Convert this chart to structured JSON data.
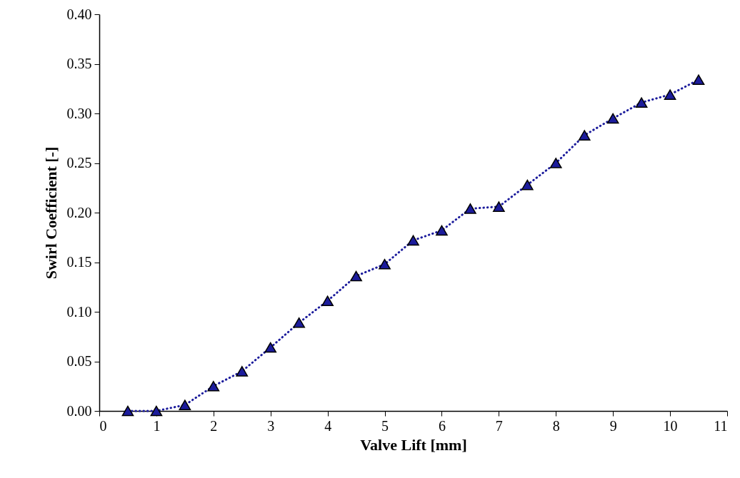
{
  "chart_data": {
    "type": "line",
    "xlabel": "Valve Lift [mm]",
    "ylabel": "Swirl Coefficient [-]",
    "x": [
      0.5,
      1,
      1.5,
      2,
      2.5,
      3,
      3.5,
      4,
      4.5,
      5,
      5.5,
      6,
      6.5,
      7,
      7.5,
      8,
      8.5,
      9,
      9.5,
      10,
      10.5
    ],
    "series": [
      {
        "color": "#1c1c9c",
        "values": [
          0.0,
          0.0,
          0.006,
          0.025,
          0.04,
          0.064,
          0.089,
          0.111,
          0.136,
          0.148,
          0.172,
          0.182,
          0.204,
          0.206,
          0.228,
          0.25,
          0.278,
          0.295,
          0.311,
          0.319,
          0.334
        ]
      }
    ],
    "xlim": [
      0,
      11
    ],
    "xticks": [
      0,
      1,
      2,
      3,
      4,
      5,
      6,
      7,
      8,
      9,
      10,
      11
    ],
    "ylim": [
      0,
      0.4
    ],
    "yticks": [
      {
        "value": 0,
        "label": "0.00"
      },
      {
        "value": 0.05,
        "label": "0.05"
      },
      {
        "value": 0.1,
        "label": "0.10"
      },
      {
        "value": 0.15,
        "label": "0.15"
      },
      {
        "value": 0.2,
        "label": "0.20"
      },
      {
        "value": 0.25,
        "label": "0.25"
      },
      {
        "value": 0.3,
        "label": "0.30"
      },
      {
        "value": 0.35,
        "label": "0.35"
      },
      {
        "value": 0.4,
        "label": "0.40"
      }
    ],
    "marker": "triangle",
    "line_style": "dotted"
  }
}
